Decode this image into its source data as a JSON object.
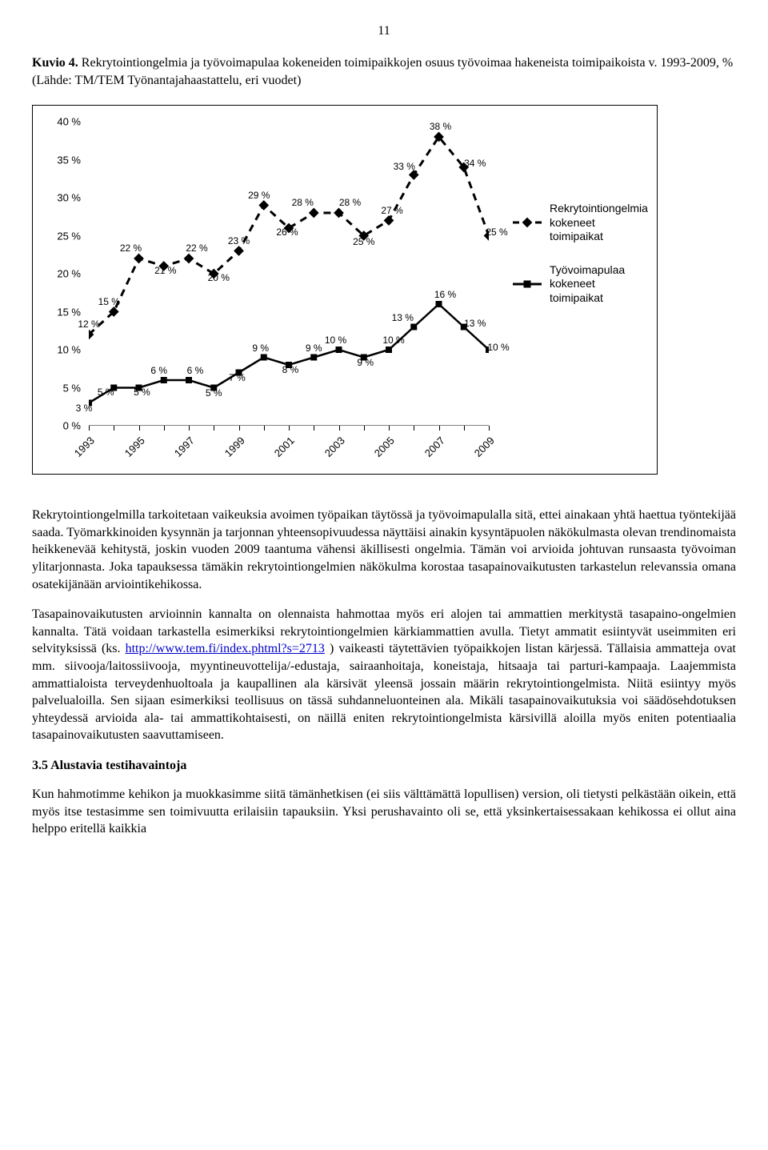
{
  "page_number": "11",
  "figure": {
    "caption_prefix": "Kuvio 4.",
    "caption_body": " Rekrytointiongelmia ja työvoimapulaa kokeneiden toimipaikkojen osuus työvoimaa hakeneista toimipaikoista v. 1993-2009, % (Lähde: TM/TEM Työnantajahaastattelu, eri vuodet)",
    "chart": {
      "type": "line",
      "background_color": "#ffffff",
      "border_color": "#000000",
      "y": {
        "min": 0,
        "max": 40,
        "step": 5,
        "suffix": " %",
        "font_size": 13
      },
      "x": {
        "years": [
          1993,
          1994,
          1995,
          1996,
          1997,
          1998,
          1999,
          2000,
          2001,
          2002,
          2003,
          2004,
          2005,
          2006,
          2007,
          2008,
          2009
        ],
        "tick_labels": [
          "1993",
          "1995",
          "1997",
          "1999",
          "2001",
          "2003",
          "2005",
          "2007",
          "2009"
        ],
        "font_size": 13
      },
      "series": [
        {
          "key": "rekry",
          "legend": "Rekrytointiongelmia kokeneet toimipaikat",
          "color": "#000000",
          "marker": "diamond",
          "marker_size": 9,
          "line_style": "dashed",
          "line_width": 3,
          "points": [
            {
              "x": 1993,
              "y": 12,
              "lbl": "12 %",
              "dx": 0,
              "dy": -6
            },
            {
              "x": 1994,
              "y": 15,
              "lbl": "15 %",
              "dx": -6,
              "dy": -6
            },
            {
              "x": 1995,
              "y": 22,
              "lbl": "22 %",
              "dx": -10,
              "dy": -6
            },
            {
              "x": 1996,
              "y": 21,
              "lbl": "21 %",
              "dx": 2,
              "dy": 12
            },
            {
              "x": 1997,
              "y": 22,
              "lbl": "22 %",
              "dx": 10,
              "dy": -6
            },
            {
              "x": 1998,
              "y": 20,
              "lbl": "20 %",
              "dx": 6,
              "dy": 12
            },
            {
              "x": 1999,
              "y": 23,
              "lbl": "23 %",
              "dx": 0,
              "dy": -6
            },
            {
              "x": 2000,
              "y": 29,
              "lbl": "29 %",
              "dx": -6,
              "dy": -6
            },
            {
              "x": 2001,
              "y": 26,
              "lbl": "26 %",
              "dx": -2,
              "dy": 12
            },
            {
              "x": 2002,
              "y": 28,
              "lbl": "28 %",
              "dx": -14,
              "dy": -6
            },
            {
              "x": 2003,
              "y": 28,
              "lbl": "28 %",
              "dx": 14,
              "dy": -6
            },
            {
              "x": 2004,
              "y": 25,
              "lbl": "25 %",
              "dx": 0,
              "dy": 14
            },
            {
              "x": 2005,
              "y": 27,
              "lbl": "27 %",
              "dx": 4,
              "dy": -6
            },
            {
              "x": 2006,
              "y": 33,
              "lbl": "33 %",
              "dx": -12,
              "dy": -4
            },
            {
              "x": 2007,
              "y": 38,
              "lbl": "38 %",
              "dx": 2,
              "dy": -6
            },
            {
              "x": 2008,
              "y": 34,
              "lbl": "34 %",
              "dx": 14,
              "dy": 2
            },
            {
              "x": 2009,
              "y": 25,
              "lbl": "25 %",
              "dx": 10,
              "dy": 2
            }
          ]
        },
        {
          "key": "pula",
          "legend": "Työvoimapulaa kokeneet toimipaikat",
          "color": "#000000",
          "marker": "square",
          "marker_size": 8,
          "line_style": "solid",
          "line_width": 2.5,
          "points": [
            {
              "x": 1993,
              "y": 3,
              "lbl": "3 %",
              "dx": -6,
              "dy": 13
            },
            {
              "x": 1994,
              "y": 5,
              "lbl": "5 %",
              "dx": -10,
              "dy": 12
            },
            {
              "x": 1995,
              "y": 5,
              "lbl": "5 %",
              "dx": 4,
              "dy": 12
            },
            {
              "x": 1996,
              "y": 6,
              "lbl": "6 %",
              "dx": -6,
              "dy": -5
            },
            {
              "x": 1997,
              "y": 6,
              "lbl": "6 %",
              "dx": 8,
              "dy": -5
            },
            {
              "x": 1998,
              "y": 5,
              "lbl": "5 %",
              "dx": 0,
              "dy": 13
            },
            {
              "x": 1999,
              "y": 7,
              "lbl": "7 %",
              "dx": -2,
              "dy": 13
            },
            {
              "x": 2000,
              "y": 9,
              "lbl": "9 %",
              "dx": -4,
              "dy": -5
            },
            {
              "x": 2001,
              "y": 8,
              "lbl": "8 %",
              "dx": 2,
              "dy": 13
            },
            {
              "x": 2002,
              "y": 9,
              "lbl": "9 %",
              "dx": 0,
              "dy": -5
            },
            {
              "x": 2003,
              "y": 10,
              "lbl": "10 %",
              "dx": -4,
              "dy": -5
            },
            {
              "x": 2004,
              "y": 9,
              "lbl": "9 %",
              "dx": 2,
              "dy": 13
            },
            {
              "x": 2005,
              "y": 10,
              "lbl": "10 %",
              "dx": 6,
              "dy": -5
            },
            {
              "x": 2006,
              "y": 13,
              "lbl": "13 %",
              "dx": -14,
              "dy": -5
            },
            {
              "x": 2007,
              "y": 16,
              "lbl": "16 %",
              "dx": 8,
              "dy": -5
            },
            {
              "x": 2008,
              "y": 13,
              "lbl": "13 %",
              "dx": 14,
              "dy": 2
            },
            {
              "x": 2009,
              "y": 10,
              "lbl": "10 %",
              "dx": 12,
              "dy": 4
            }
          ]
        }
      ]
    }
  },
  "paragraphs": {
    "p1": "Rekrytointiongelmilla tarkoitetaan vaikeuksia avoimen työpaikan täytössä ja työvoimapulalla sitä, ettei ainakaan yhtä haettua työntekijää saada. Työmarkkinoiden kysynnän ja tarjonnan yhteensopivuudessa näyttäisi ainakin kysyntäpuolen näkökulmasta olevan trendinomaista heikkenevää kehitystä, joskin vuoden 2009 taantuma vähensi äkillisesti ongelmia. Tämän voi arvioida johtuvan runsaasta työvoiman ylitarjonnasta. Joka tapauksessa tämäkin rekrytointiongelmien näkökulma korostaa tasapainovaikutusten tarkastelun relevanssia omana osatekijänään arviointikehikossa.",
    "p2_a": "Tasapainovaikutusten arvioinnin kannalta on olennaista hahmottaa myös eri alojen tai ammattien merkitystä tasapaino-ongelmien kannalta. Tätä voidaan tarkastella esimerkiksi rekrytointiongelmien kärkiammattien avulla. Tietyt ammatit esiintyvät useimmiten eri selvityksissä (ks. ",
    "p2_link_text": "http://www.tem.fi/index.phtml?s=2713",
    "p2_link_href": "http://www.tem.fi/index.phtml?s=2713",
    "p2_b": " ) vaikeasti täytettävien työpaikkojen listan kärjessä. Tällaisia ammatteja ovat mm. siivooja/laitossiivooja, myyntineuvottelija/-edustaja, sairaanhoitaja, koneistaja, hitsaaja tai parturi-kampaaja. Laajemmista ammattialoista terveydenhuoltoala ja kaupallinen ala kärsivät yleensä jossain määrin rekrytointiongelmista. Niitä esiintyy myös palvelualoilla. Sen sijaan esimerkiksi teollisuus on tässä suhdanneluonteinen ala. Mikäli tasapainovaikutuksia voi säädösehdotuksen yhteydessä arvioida ala- tai ammattikohtaisesti, on näillä eniten rekrytointiongelmista kärsivillä aloilla myös eniten potentiaalia tasapainovaikutusten saavuttamiseen.",
    "heading": "3.5 Alustavia testihavaintoja",
    "p3": "Kun hahmotimme kehikon ja muokkasimme siitä tämänhetkisen (ei siis välttämättä lopullisen) version, oli tietysti pelkästään oikein, että myös itse testasimme sen toimivuutta erilaisiin tapauksiin. Yksi perushavainto oli se, että yksinkertaisessakaan kehikossa ei ollut aina helppo eritellä kaikkia"
  }
}
